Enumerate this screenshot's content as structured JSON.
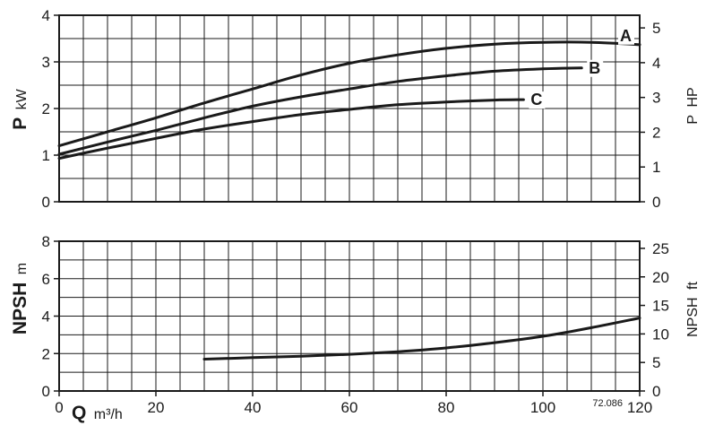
{
  "chart_data": [
    {
      "type": "line",
      "xlabel_symbol": "",
      "xlabel_unit": "",
      "ylabel_symbol": "P",
      "ylabel_unit": "kW",
      "ylabel_right_symbol": "P",
      "ylabel_right_unit": "HP",
      "xlim": [
        0,
        120
      ],
      "ylim": [
        0,
        4
      ],
      "ylim_right": [
        0,
        5.364
      ],
      "x_ticks": [
        "0",
        "20",
        "40",
        "60",
        "80",
        "100",
        "120"
      ],
      "y_ticks": [
        "0",
        "1",
        "2",
        "3",
        "4"
      ],
      "y_ticks_right": [
        "0",
        "1",
        "2",
        "3",
        "4",
        "5"
      ],
      "grid": true,
      "series": [
        {
          "name": "A",
          "x": [
            0,
            10,
            20,
            30,
            40,
            50,
            60,
            70,
            80,
            90,
            100,
            110,
            120
          ],
          "values": [
            1.2,
            1.5,
            1.8,
            2.12,
            2.42,
            2.72,
            2.97,
            3.15,
            3.29,
            3.38,
            3.42,
            3.42,
            3.37
          ]
        },
        {
          "name": "B",
          "x": [
            0,
            10,
            20,
            30,
            40,
            50,
            60,
            70,
            80,
            90,
            100,
            108
          ],
          "values": [
            1.02,
            1.28,
            1.53,
            1.8,
            2.05,
            2.25,
            2.42,
            2.58,
            2.7,
            2.8,
            2.85,
            2.87
          ]
        },
        {
          "name": "C",
          "x": [
            0,
            10,
            20,
            30,
            40,
            50,
            60,
            70,
            80,
            90,
            96
          ],
          "values": [
            0.93,
            1.15,
            1.36,
            1.56,
            1.72,
            1.87,
            1.98,
            2.08,
            2.14,
            2.18,
            2.19
          ]
        }
      ]
    },
    {
      "type": "line",
      "xlabel_symbol": "Q",
      "xlabel_unit": "m³/h",
      "ylabel_symbol": "NPSH",
      "ylabel_unit": "m",
      "ylabel_right_symbol": "NPSH",
      "ylabel_right_unit": "ft",
      "xlim": [
        0,
        120
      ],
      "ylim": [
        0,
        8
      ],
      "ylim_right": [
        0,
        26.25
      ],
      "x_ticks": [
        "0",
        "20",
        "40",
        "60",
        "80",
        "100",
        "120"
      ],
      "y_ticks": [
        "0",
        "2",
        "4",
        "6",
        "8"
      ],
      "y_ticks_right": [
        "0",
        "5",
        "10",
        "15",
        "20",
        "25"
      ],
      "grid": true,
      "reference": "72.086",
      "series": [
        {
          "x": [
            30,
            40,
            50,
            60,
            70,
            80,
            90,
            100,
            110,
            120
          ],
          "values": [
            1.7,
            1.78,
            1.86,
            1.96,
            2.1,
            2.3,
            2.58,
            2.92,
            3.38,
            3.9
          ]
        }
      ]
    }
  ]
}
